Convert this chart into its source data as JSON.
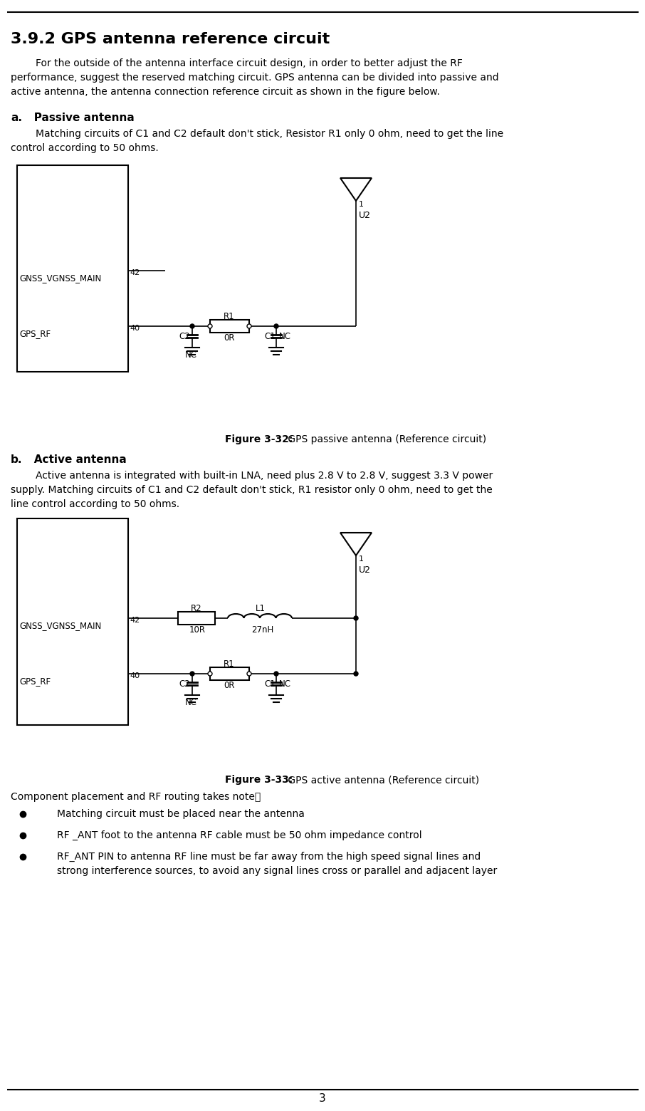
{
  "title": "3.9.2 GPS antenna reference circuit",
  "bg_color": "#ffffff",
  "text_color": "#000000",
  "page_number": "3",
  "intro_line1": "        For the outside of the antenna interface circuit design, in order to better adjust the RF",
  "intro_line2": "performance, suggest the reserved matching circuit. GPS antenna can be divided into passive and",
  "intro_line3": "active antenna, the antenna connection reference circuit as shown in the figure below.",
  "section_a_label": "a.",
  "section_a_name": "   Passive antenna",
  "section_a_body1": "        Matching circuits of C1 and C2 default don't stick, Resistor R1 only 0 ohm, need to get the line",
  "section_a_body2": "control according to 50 ohms.",
  "figure1_bold": "Figure 3-32:",
  "figure1_rest": " GPS passive antenna (Reference circuit)",
  "section_b_label": "b.",
  "section_b_name": "   Active antenna",
  "section_b_body1": "        Active antenna is integrated with built-in LNA, need plus 2.8 V to 2.8 V, suggest 3.3 V power",
  "section_b_body2": "supply. Matching circuits of C1 and C2 default don't stick, R1 resistor only 0 ohm, need to get the",
  "section_b_body3": "line control according to 50 ohms.",
  "figure2_bold": "Figure 3-33:",
  "figure2_rest": " GPS active antenna (Reference circuit)",
  "bullet_title": "Component placement and RF routing takes note：",
  "bullet1": "        Matching circuit must be placed near the antenna",
  "bullet2": "        RF _ANT foot to the antenna RF cable must be 50 ohm impedance control",
  "bullet3a": "        RF_ANT PIN to antenna RF line must be far away from the high speed signal lines and",
  "bullet3b": "        strong interference sources, to avoid any signal lines cross or parallel and adjacent layer"
}
